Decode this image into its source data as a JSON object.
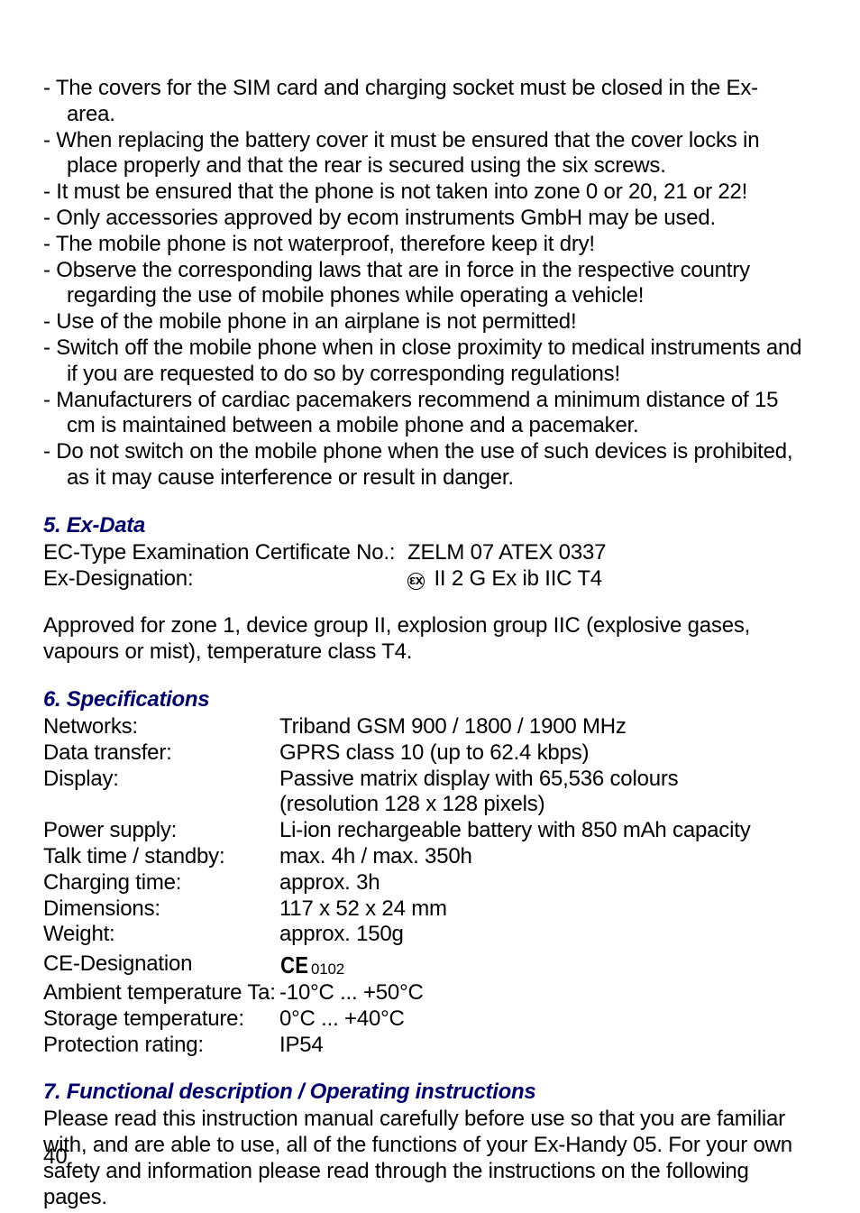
{
  "bullets": [
    "The covers for the SIM card and charging socket must be closed in the Ex-area.",
    "When replacing the battery cover it must be ensured that the cover locks in place properly and that the rear is secured using the six screws.",
    "It must be ensured that the phone is not taken into zone 0 or 20, 21 or 22!",
    "Only accessories approved by ecom instruments GmbH may be used.",
    "The mobile phone is not waterproof, therefore keep it dry!",
    "Observe the corresponding laws that are in force in the respective country regarding the use of mobile phones while operating a vehicle!",
    "Use of the mobile phone in an airplane is not permitted!",
    "Switch off the mobile phone when in close proximity to medical instruments and if you are requested to do so by corresponding regulations!",
    "Manufacturers of cardiac pacemakers recommend a minimum distance of 15 cm is maintained between a mobile phone and a pacemaker.",
    "Do not switch on the mobile phone when the use of such devices is prohibited, as it may cause interference or result in danger."
  ],
  "section5": {
    "heading": "5. Ex-Data",
    "rows": [
      {
        "key": "EC-Type Examination Certificate No.:",
        "val": "ZELM 07 ATEX 0337"
      },
      {
        "key": "Ex-Designation:",
        "val": "II 2 G Ex ib IIC T4",
        "epsilon": true
      }
    ],
    "para": "Approved for zone 1, device group II, explosion group IIC (explosive gases, vapours or mist), temperature class T4."
  },
  "section6": {
    "heading": "6. Specifications",
    "rows1": [
      {
        "key": "Networks:",
        "val": "Triband GSM 900 / 1800 / 1900 MHz"
      },
      {
        "key": "Data transfer:",
        "val": "GPRS class 10 (up to 62.4 kbps)"
      },
      {
        "key": "Display:",
        "val": "Passive matrix display with 65,536 colours"
      }
    ],
    "display_line2": "(resolution 128 x 128 pixels)",
    "rows2": [
      {
        "key": "Power supply:",
        "val": "Li-ion rechargeable battery with 850 mAh capacity"
      },
      {
        "key": "Talk time / standby:",
        "val": "max. 4h / max. 350h"
      },
      {
        "key": "Charging time:",
        "val": "approx. 3h"
      },
      {
        "key": "Dimensions:",
        "val": "117 x 52 x 24 mm"
      },
      {
        "key": "Weight:",
        "val": "approx. 150g"
      }
    ],
    "rows3": [
      {
        "key": "CE-Designation",
        "ce": true,
        "ce_num": "0102"
      },
      {
        "key": "Ambient temperature Ta:",
        "val": "-10°C ... +50°C"
      },
      {
        "key": "Storage temperature:",
        "val": "0°C ... +40°C"
      },
      {
        "key": "Protection rating:",
        "val": "IP54"
      }
    ]
  },
  "section7": {
    "heading": "7. Functional description / Operating instructions",
    "para": "Please read this instruction manual carefully before use so that you are familiar with, and are able to use, all of the functions of your Ex-Handy 05. For your own safety and information please read through the instructions on the following pages."
  },
  "page_num": "40"
}
